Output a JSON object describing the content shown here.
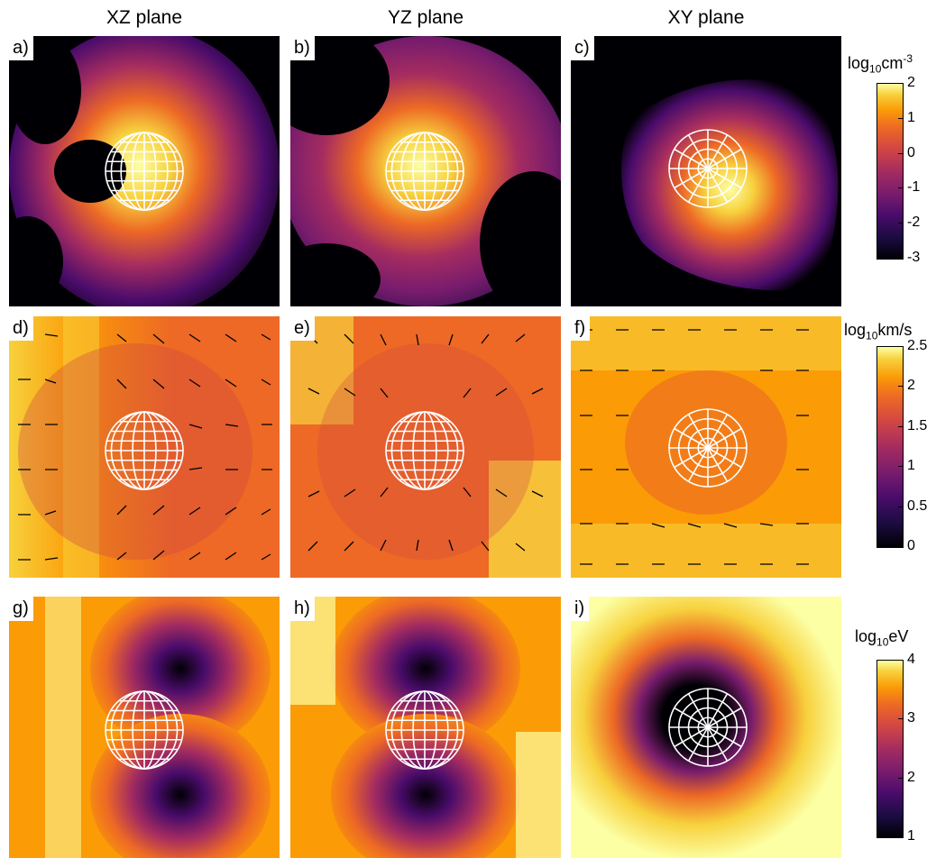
{
  "columns": [
    "XZ plane",
    "YZ plane",
    "XY plane"
  ],
  "panels": [
    {
      "label": "a)",
      "row": "density",
      "view": "xz"
    },
    {
      "label": "b)",
      "row": "density",
      "view": "yz"
    },
    {
      "label": "c)",
      "row": "density",
      "view": "xy"
    },
    {
      "label": "d)",
      "row": "velocity",
      "view": "xz"
    },
    {
      "label": "e)",
      "row": "velocity",
      "view": "yz"
    },
    {
      "label": "f)",
      "row": "velocity",
      "view": "xy"
    },
    {
      "label": "g)",
      "row": "energy",
      "view": "xz"
    },
    {
      "label": "h)",
      "row": "energy",
      "view": "yz"
    },
    {
      "label": "i)",
      "row": "energy",
      "view": "xy"
    }
  ],
  "colorbars": [
    {
      "base": "log",
      "sub": "10",
      "unit": "cm",
      "sup": "-3",
      "ticks": [
        "2",
        "1",
        "0",
        "-1",
        "-2",
        "-3"
      ]
    },
    {
      "base": "log",
      "sub": "10",
      "unit": "km/s",
      "sup": "",
      "ticks": [
        "2.5",
        "2",
        "1.5",
        "1",
        "0.5",
        "0"
      ]
    },
    {
      "base": "log",
      "sub": "10",
      "unit": "eV",
      "sup": "",
      "ticks": [
        "4",
        "3",
        "2",
        "1"
      ]
    }
  ],
  "colormap": "inferno",
  "colors": {
    "dark": "#000004",
    "mid": "#a52c60",
    "bright": "#fcffa4",
    "globe_lines": "#ffffff",
    "arrows": "#000000"
  }
}
